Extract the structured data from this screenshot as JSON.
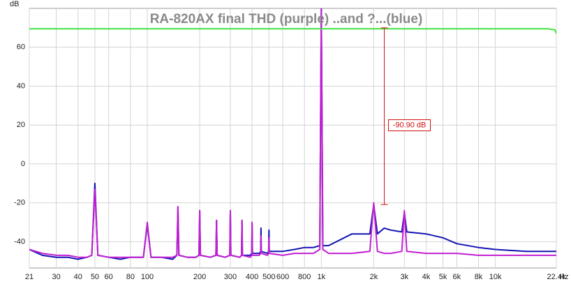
{
  "chart_data": {
    "type": "line",
    "title": "RA-820AX final THD (purple) ..and ?...(blue)",
    "ylabel": "dB",
    "xlabel": "Hz",
    "log_x": true,
    "grid": true,
    "x": [
      21,
      25,
      30,
      35,
      40,
      45,
      48,
      50,
      52,
      60,
      70,
      80,
      95,
      100,
      105,
      120,
      140,
      148,
      150,
      152,
      170,
      190,
      198,
      200,
      202,
      230,
      248,
      250,
      252,
      280,
      298,
      300,
      302,
      340,
      348,
      350,
      352,
      390,
      398,
      400,
      402,
      440,
      448,
      450,
      452,
      490,
      498,
      500,
      502,
      600,
      700,
      800,
      900,
      980,
      1000,
      1020,
      1100,
      1500,
      1900,
      2000,
      2100,
      2300,
      2500,
      2900,
      3000,
      3100,
      4000,
      5000,
      6000,
      8000,
      10000,
      15000,
      20000,
      22000,
      22400
    ],
    "series": [
      {
        "color": "#1414b4",
        "values": [
          -44,
          -47,
          -48,
          -48,
          -49,
          -48,
          -47,
          -10,
          -47,
          -48,
          -49,
          -48,
          -48,
          -31,
          -48,
          -48,
          -49,
          -47,
          -22,
          -47,
          -48,
          -48,
          -47,
          -24,
          -47,
          -48,
          -47,
          -29,
          -47,
          -48,
          -47,
          -24,
          -47,
          -48,
          -47,
          -29,
          -47,
          -47,
          -46,
          -31,
          -46,
          -46,
          -45,
          -33,
          -45,
          -46,
          -45,
          -34,
          -45,
          -45,
          -44,
          -43,
          -43,
          -42,
          80,
          -42,
          -42,
          -36,
          -36,
          -21,
          -36,
          -33,
          -34,
          -35,
          -25,
          -35,
          -36,
          -38,
          -41,
          -43,
          -44,
          -45,
          -45,
          -45,
          -45
        ]
      },
      {
        "color": "#c21fd2",
        "values": [
          -44,
          -46,
          -47,
          -47,
          -48,
          -48,
          -47,
          -13,
          -47,
          -48,
          -48,
          -48,
          -48,
          -30,
          -48,
          -48,
          -48,
          -47,
          -22,
          -47,
          -48,
          -48,
          -47,
          -24,
          -47,
          -48,
          -47,
          -29,
          -47,
          -48,
          -47,
          -24,
          -47,
          -48,
          -47,
          -29,
          -47,
          -48,
          -47,
          -30,
          -47,
          -47,
          -46,
          -37,
          -46,
          -47,
          -46,
          -38,
          -46,
          -47,
          -46,
          -46,
          -46,
          -44,
          80,
          -44,
          -46,
          -46,
          -45,
          -20,
          -45,
          -46,
          -46,
          -45,
          -24,
          -45,
          -46,
          -46,
          -46,
          -47,
          -47,
          -47,
          -47,
          -47,
          -47
        ]
      },
      {
        "color": "#44e044",
        "values": [
          69.5,
          69.5,
          69.5,
          69.5,
          69.5,
          69.5,
          69.5,
          69.5,
          69.5,
          69.5,
          69.5,
          69.5,
          69.5,
          69.5,
          69.5,
          69.5,
          69.5,
          69.5,
          69.5,
          69.5,
          69.5,
          69.5,
          69.5,
          69.5,
          69.5,
          69.5,
          69.5,
          69.5,
          69.5,
          69.5,
          69.5,
          69.5,
          69.5,
          69.5,
          69.5,
          69.5,
          69.5,
          69.5,
          69.5,
          69.5,
          69.5,
          69.5,
          69.5,
          69.5,
          69.5,
          69.5,
          69.5,
          69.5,
          69.5,
          69.5,
          69.5,
          69.5,
          69.5,
          69.5,
          69.5,
          69.5,
          69.5,
          69.5,
          69.5,
          69.5,
          69.5,
          69.5,
          69.5,
          69.5,
          69.5,
          69.5,
          69.5,
          69.5,
          69.5,
          69.5,
          69.5,
          69.5,
          69.5,
          69,
          67
        ]
      }
    ],
    "cursor": {
      "x": 2300,
      "y1": 70,
      "y2": -20.9,
      "label": "-90.90 dB",
      "color": "#d01010"
    },
    "xlim": [
      21,
      22400
    ],
    "ylim": [
      -53.5,
      80
    ],
    "yticks": [
      -40,
      -20,
      0,
      20,
      40,
      60
    ],
    "xticks": [
      21,
      30,
      40,
      50,
      60,
      80,
      100,
      200,
      300,
      400,
      500,
      600,
      800,
      {
        "value": 1000,
        "label": "1k"
      },
      {
        "value": 2000,
        "label": "2k"
      },
      {
        "value": 3000,
        "label": "3k"
      },
      {
        "value": 4000,
        "label": "4k"
      },
      {
        "value": 5000,
        "label": "5k"
      },
      {
        "value": 6000,
        "label": "6k"
      },
      {
        "value": 8000,
        "label": "8k"
      },
      {
        "value": 10000,
        "label": "10k"
      },
      {
        "value": 22400,
        "label": "22.4k"
      }
    ]
  }
}
